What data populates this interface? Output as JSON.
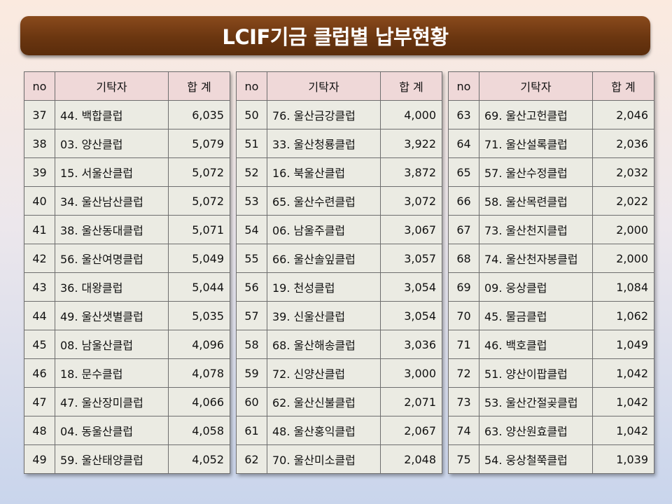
{
  "title": "LCIF기금 클럽별 납부현황",
  "headers": {
    "no": "no",
    "name": "기탁자",
    "sum": "합 계"
  },
  "tables": [
    {
      "rows": [
        {
          "no": "37",
          "name": "44. 백합클럽",
          "sum": "6,035"
        },
        {
          "no": "38",
          "name": "03. 양산클럽",
          "sum": "5,079"
        },
        {
          "no": "39",
          "name": "15. 서울산클럽",
          "sum": "5,072"
        },
        {
          "no": "40",
          "name": "34. 울산남산클럽",
          "sum": "5,072"
        },
        {
          "no": "41",
          "name": "38. 울산동대클럽",
          "sum": "5,071"
        },
        {
          "no": "42",
          "name": "56. 울산여명클럽",
          "sum": "5,049"
        },
        {
          "no": "43",
          "name": "36. 대왕클럽",
          "sum": "5,044"
        },
        {
          "no": "44",
          "name": "49. 울산샛별클럽",
          "sum": "5,035"
        },
        {
          "no": "45",
          "name": "08. 남울산클럽",
          "sum": "4,096"
        },
        {
          "no": "46",
          "name": "18. 문수클럽",
          "sum": "4,078"
        },
        {
          "no": "47",
          "name": "47. 울산장미클럽",
          "sum": "4,066"
        },
        {
          "no": "48",
          "name": "04. 동울산클럽",
          "sum": "4,058"
        },
        {
          "no": "49",
          "name": "59. 울산태양클럽",
          "sum": "4,052"
        }
      ]
    },
    {
      "rows": [
        {
          "no": "50",
          "name": "76. 울산금강클럽",
          "sum": "4,000"
        },
        {
          "no": "51",
          "name": "33. 울산청룡클럽",
          "sum": "3,922"
        },
        {
          "no": "52",
          "name": "16. 북울산클럽",
          "sum": "3,872"
        },
        {
          "no": "53",
          "name": "65. 울산수련클럽",
          "sum": "3,072"
        },
        {
          "no": "54",
          "name": "06. 남울주클럽",
          "sum": "3,067"
        },
        {
          "no": "55",
          "name": "66. 울산솔잎클럽",
          "sum": "3,057"
        },
        {
          "no": "56",
          "name": "19. 천성클럽",
          "sum": "3,054"
        },
        {
          "no": "57",
          "name": "39. 신울산클럽",
          "sum": "3,054"
        },
        {
          "no": "58",
          "name": "68. 울산해송클럽",
          "sum": "3,036"
        },
        {
          "no": "59",
          "name": "72. 신양산클럽",
          "sum": "3,000"
        },
        {
          "no": "60",
          "name": "62. 울산신불클럽",
          "sum": "2,071"
        },
        {
          "no": "61",
          "name": "48. 울산홍익클럽",
          "sum": "2,067"
        },
        {
          "no": "62",
          "name": "70. 울산미소클럽",
          "sum": "2,048"
        }
      ]
    },
    {
      "rows": [
        {
          "no": "63",
          "name": "69. 울산고헌클럽",
          "sum": "2,046"
        },
        {
          "no": "64",
          "name": "71. 울산설록클럽",
          "sum": "2,036"
        },
        {
          "no": "65",
          "name": "57. 울산수정클럽",
          "sum": "2,032"
        },
        {
          "no": "66",
          "name": "58. 울산목련클럽",
          "sum": "2,022"
        },
        {
          "no": "67",
          "name": "73. 울산천지클럽",
          "sum": "2,000"
        },
        {
          "no": "68",
          "name": "74. 울산천자봉클럽",
          "sum": "2,000"
        },
        {
          "no": "69",
          "name": "09. 웅상클럽",
          "sum": "1,084"
        },
        {
          "no": "70",
          "name": "45. 물금클럽",
          "sum": "1,062"
        },
        {
          "no": "71",
          "name": "46. 백호클럽",
          "sum": "1,049"
        },
        {
          "no": "72",
          "name": "51. 양산이팝클럽",
          "sum": "1,042"
        },
        {
          "no": "73",
          "name": "53. 울산간절곶클럽",
          "sum": "1,042"
        },
        {
          "no": "74",
          "name": "63. 양산원효클럽",
          "sum": "1,042"
        },
        {
          "no": "75",
          "name": "54. 웅상철쭉클럽",
          "sum": "1,039"
        }
      ]
    }
  ]
}
